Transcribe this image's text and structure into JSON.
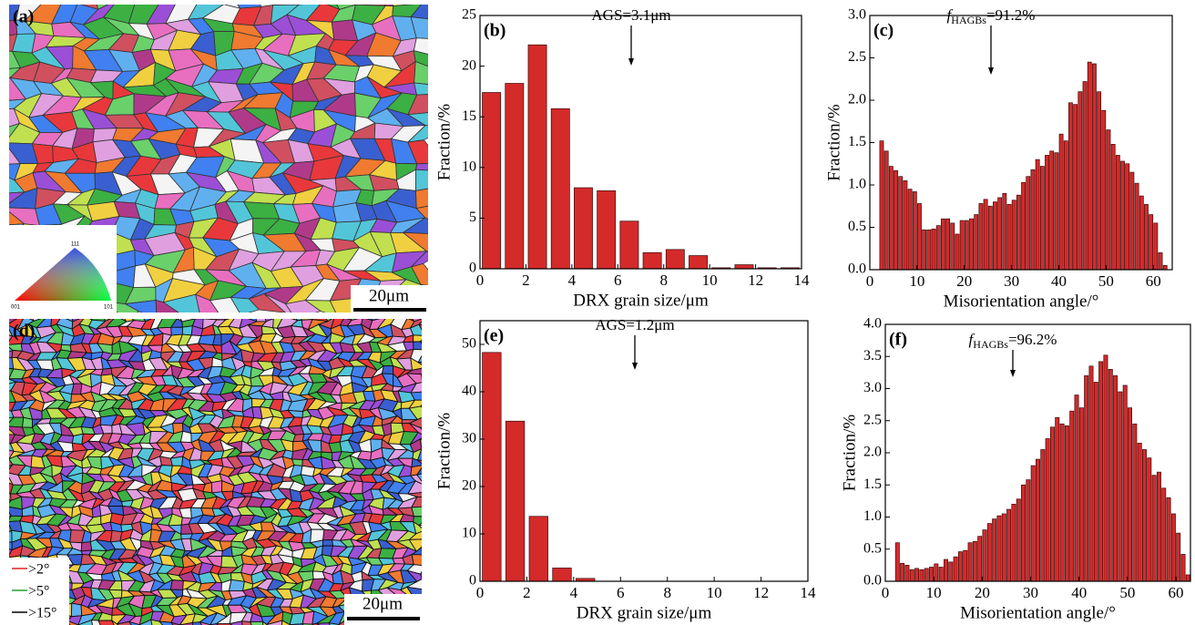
{
  "maps": [
    {
      "label": "(a)",
      "scale_bar": "20μm",
      "ipf_labels": [
        "111",
        "001",
        "101"
      ]
    },
    {
      "label": "(d)",
      "scale_bar": "20μm",
      "legend": [
        {
          "name": ">2°",
          "color": "#e02020"
        },
        {
          "name": ">5°",
          "color": "#20a030"
        },
        {
          "name": ">15°",
          "color": "#000000"
        }
      ]
    }
  ],
  "chart_data": [
    {
      "type": "histogram",
      "label": "(b)",
      "annotation": "AGS=3.1μm",
      "x_label": "DRX grain size/μm",
      "y_label": "Fraction/%",
      "color": "#d42a2a",
      "bins": [
        0,
        1,
        2,
        3,
        4,
        5,
        6,
        7,
        8,
        9,
        10,
        11,
        12,
        13,
        14
      ],
      "values": [
        17.4,
        18.3,
        22.1,
        15.8,
        8.0,
        7.7,
        4.7,
        1.6,
        1.9,
        1.3,
        0.1,
        0.4,
        0.1,
        0.1
      ],
      "xlim": [
        0,
        14
      ],
      "xticks": [
        0,
        2,
        4,
        6,
        8,
        10,
        12,
        14
      ],
      "ylim": [
        0,
        25
      ],
      "yticks": [
        0,
        5,
        10,
        15,
        20,
        25
      ]
    },
    {
      "type": "histogram",
      "label": "(c)",
      "annotation": {
        "symbol": "f",
        "subscript": "HAGBs",
        "text": "=91.2%"
      },
      "x_label": "Misorientation angle/°",
      "y_label": "Fraction/%",
      "color": "#d42a2a",
      "bins": [
        2,
        3,
        4,
        5,
        6,
        7,
        8,
        9,
        10,
        11,
        12,
        13,
        14,
        15,
        16,
        17,
        18,
        19,
        20,
        21,
        22,
        23,
        24,
        25,
        26,
        27,
        28,
        29,
        30,
        31,
        32,
        33,
        34,
        35,
        36,
        37,
        38,
        39,
        40,
        41,
        42,
        43,
        44,
        45,
        46,
        47,
        48,
        49,
        50,
        51,
        52,
        53,
        54,
        55,
        56,
        57,
        58,
        59,
        60,
        61,
        62,
        63
      ],
      "values": [
        1.52,
        1.4,
        1.22,
        1.17,
        1.1,
        1.05,
        0.95,
        0.92,
        0.78,
        0.47,
        0.47,
        0.48,
        0.52,
        0.6,
        0.6,
        0.55,
        0.42,
        0.58,
        0.58,
        0.6,
        0.65,
        0.78,
        0.83,
        0.75,
        0.8,
        0.85,
        0.9,
        0.77,
        0.82,
        0.88,
        1.03,
        1.1,
        1.18,
        1.3,
        1.22,
        1.35,
        1.4,
        1.38,
        1.6,
        1.52,
        1.97,
        1.95,
        2.1,
        2.22,
        2.45,
        2.43,
        2.1,
        1.88,
        1.65,
        1.48,
        1.35,
        1.28,
        1.25,
        1.15,
        1.02,
        0.87,
        0.77,
        0.65,
        0.55,
        0.2,
        0.05
      ],
      "xlim": [
        0,
        64
      ],
      "xticks": [
        0,
        10,
        20,
        30,
        40,
        50,
        60
      ],
      "ylim": [
        0,
        3.0
      ],
      "yticks": [
        {
          "value": 0,
          "label": "0.0"
        },
        0.5,
        {
          "value": 1,
          "label": "1.0"
        },
        1.5,
        {
          "value": 2,
          "label": "2.0"
        },
        2.5,
        {
          "value": 3,
          "label": "3.0"
        }
      ]
    },
    {
      "type": "histogram",
      "label": "(e)",
      "annotation": "AGS=1.2μm",
      "x_label": "DRX grain size/μm",
      "y_label": "Fraction/%",
      "color": "#d42a2a",
      "bins": [
        0,
        1,
        2,
        3,
        4,
        5
      ],
      "values": [
        48.3,
        33.8,
        13.7,
        2.8,
        0.6
      ],
      "xlim": [
        0,
        14
      ],
      "xticks": [
        0,
        2,
        4,
        6,
        8,
        10,
        12,
        14
      ],
      "ylim": [
        0,
        55
      ],
      "yticks": [
        0,
        10,
        20,
        30,
        40,
        50
      ]
    },
    {
      "type": "histogram",
      "label": "(f)",
      "annotation": {
        "symbol": "f",
        "subscript": "HAGBs",
        "text": "=96.2%"
      },
      "x_label": "Misorientation angle/°",
      "y_label": "Fraction/%",
      "color": "#d42a2a",
      "bins": [
        2,
        3,
        4,
        5,
        6,
        7,
        8,
        9,
        10,
        11,
        12,
        13,
        14,
        15,
        16,
        17,
        18,
        19,
        20,
        21,
        22,
        23,
        24,
        25,
        26,
        27,
        28,
        29,
        30,
        31,
        32,
        33,
        34,
        35,
        36,
        37,
        38,
        39,
        40,
        41,
        42,
        43,
        44,
        45,
        46,
        47,
        48,
        49,
        50,
        51,
        52,
        53,
        54,
        55,
        56,
        57,
        58,
        59,
        60,
        61,
        62,
        63
      ],
      "values": [
        0.6,
        0.28,
        0.25,
        0.18,
        0.2,
        0.18,
        0.2,
        0.22,
        0.27,
        0.22,
        0.34,
        0.3,
        0.38,
        0.46,
        0.48,
        0.6,
        0.62,
        0.7,
        0.8,
        0.9,
        0.97,
        1.02,
        1.05,
        1.12,
        1.2,
        1.28,
        1.5,
        1.58,
        1.8,
        1.9,
        2.05,
        2.22,
        2.4,
        2.55,
        2.45,
        2.42,
        2.65,
        2.9,
        2.7,
        3.2,
        3.35,
        3.1,
        3.42,
        3.52,
        3.3,
        3.2,
        2.95,
        3.05,
        2.7,
        2.45,
        2.15,
        2.05,
        1.92,
        1.65,
        1.7,
        1.45,
        1.3,
        1.05,
        0.75,
        0.42,
        0.1
      ],
      "xlim": [
        0,
        63
      ],
      "xticks": [
        0,
        10,
        20,
        30,
        40,
        50,
        60
      ],
      "ylim": [
        0,
        4.0
      ],
      "yticks": [
        {
          "value": 0,
          "label": "0.0"
        },
        0.5,
        {
          "value": 1,
          "label": "1.0"
        },
        1.5,
        {
          "value": 2,
          "label": "2.0"
        },
        2.5,
        {
          "value": 3,
          "label": "3.0"
        },
        3.5,
        {
          "value": 4,
          "label": "4.0"
        }
      ]
    }
  ]
}
